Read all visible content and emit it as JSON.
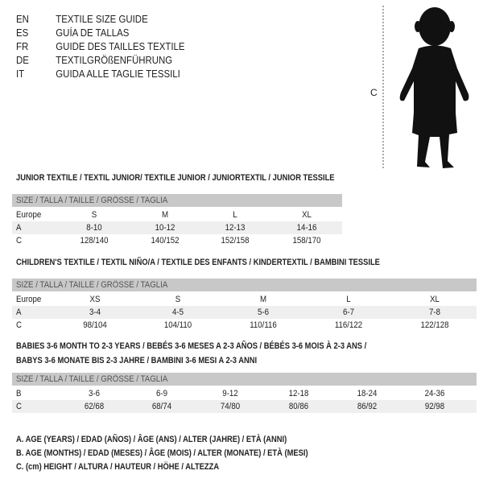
{
  "languages": [
    {
      "code": "EN",
      "title": "TEXTILE SIZE GUIDE"
    },
    {
      "code": "ES",
      "title": "GUÍA DE TALLAS"
    },
    {
      "code": "FR",
      "title": "GUIDE DES TAILLES TEXTILE"
    },
    {
      "code": "DE",
      "title": "TEXTILGRÖßENFÜHRUNG"
    },
    {
      "code": "IT",
      "title": "GUIDA ALLE TAGLIE TESSILI"
    }
  ],
  "figure": {
    "measure_label": "C"
  },
  "tables": [
    {
      "title": "JUNIOR TEXTILE / TEXTIL JUNIOR/ TEXTILE JUNIOR / JUNIORTEXTIL / JUNIOR TESSILE",
      "header": "SIZE / TALLA / TAILLE / GRÖSSE / TAGLIA",
      "rows": [
        {
          "label": "Europe",
          "values": [
            "S",
            "M",
            "L",
            "XL"
          ]
        },
        {
          "label": "A",
          "values": [
            "8-10",
            "10-12",
            "12-13",
            "14-16"
          ]
        },
        {
          "label": "C",
          "values": [
            "128/140",
            "140/152",
            "152/158",
            "158/170"
          ]
        }
      ]
    },
    {
      "title": "CHILDREN'S TEXTILE / TEXTIL NIÑO/A / TEXTILE DES ENFANTS / KINDERTEXTIL / BAMBINI TESSILE",
      "header": "SIZE / TALLA / TAILLE / GRÖSSE / TAGLIA",
      "rows": [
        {
          "label": "Europe",
          "values": [
            "XS",
            "S",
            "M",
            "L",
            "XL"
          ]
        },
        {
          "label": "A",
          "values": [
            "3-4",
            "4-5",
            "5-6",
            "6-7",
            "7-8"
          ]
        },
        {
          "label": "C",
          "values": [
            "98/104",
            "104/110",
            "110/116",
            "116/122",
            "122/128"
          ]
        }
      ]
    },
    {
      "title": "BABIES 3-6 MONTH TO 2-3 YEARS / BEBÉS 3-6 MESES A 2-3 AÑOS / BÉBÉS 3-6 MOIS À 2-3 ANS /",
      "title2": "BABYS 3-6 MONATE BIS 2-3 JAHRE / BAMBINI 3-6 MESI A 2-3 ANNI",
      "header": "SIZE / TALLA / TAILLE / GRÖSSE / TAGLIA",
      "rows": [
        {
          "label": "B",
          "values": [
            "3-6",
            "6-9",
            "9-12",
            "12-18",
            "18-24",
            "24-36"
          ]
        },
        {
          "label": "C",
          "values": [
            "62/68",
            "68/74",
            "74/80",
            "80/86",
            "86/92",
            "92/98"
          ]
        }
      ]
    }
  ],
  "legend": [
    "A. AGE (YEARS) / EDAD (AÑOS) / ÂGE (ANS) / ALTER (JAHRE) / ETÀ (ANNI)",
    "B. AGE (MONTHS) / EDAD (MESES) / ÂGE (MOIS) / ALTER (MONATE) / ETÀ (MESI)",
    "C. (cm) HEIGHT / ALTURA / HAUTEUR / HÖHE / ALTEZZA"
  ]
}
